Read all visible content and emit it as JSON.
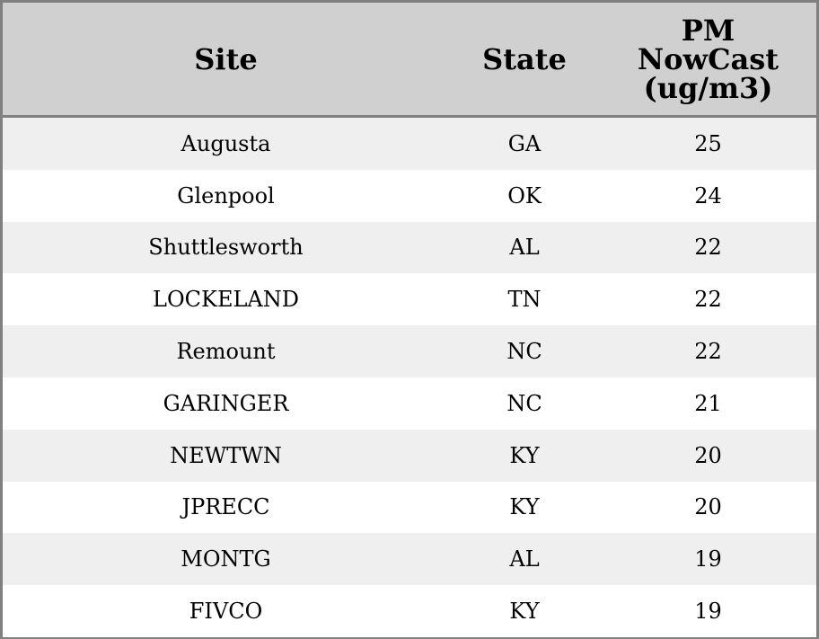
{
  "chart_data": {
    "type": "table",
    "columns": [
      "Site",
      "State",
      "PM NowCast (ug/m3)"
    ],
    "header_lines": [
      [
        "Site"
      ],
      [
        "State"
      ],
      [
        "PM",
        "NowCast",
        "(ug/m3)"
      ]
    ],
    "rows": [
      [
        "Augusta",
        "GA",
        "25"
      ],
      [
        "Glenpool",
        "OK",
        "24"
      ],
      [
        "Shuttlesworth",
        "AL",
        "22"
      ],
      [
        "LOCKELAND",
        "TN",
        "22"
      ],
      [
        "Remount",
        "NC",
        "22"
      ],
      [
        "GARINGER",
        "NC",
        "21"
      ],
      [
        "NEWTWN",
        "KY",
        "20"
      ],
      [
        "JPRECC",
        "KY",
        "20"
      ],
      [
        "MONTG",
        "AL",
        "19"
      ],
      [
        "FIVCO",
        "KY",
        "19"
      ]
    ],
    "colors": {
      "header_bg": "#d0d0d0",
      "stripe": "#efefef",
      "border": "#808080"
    }
  }
}
